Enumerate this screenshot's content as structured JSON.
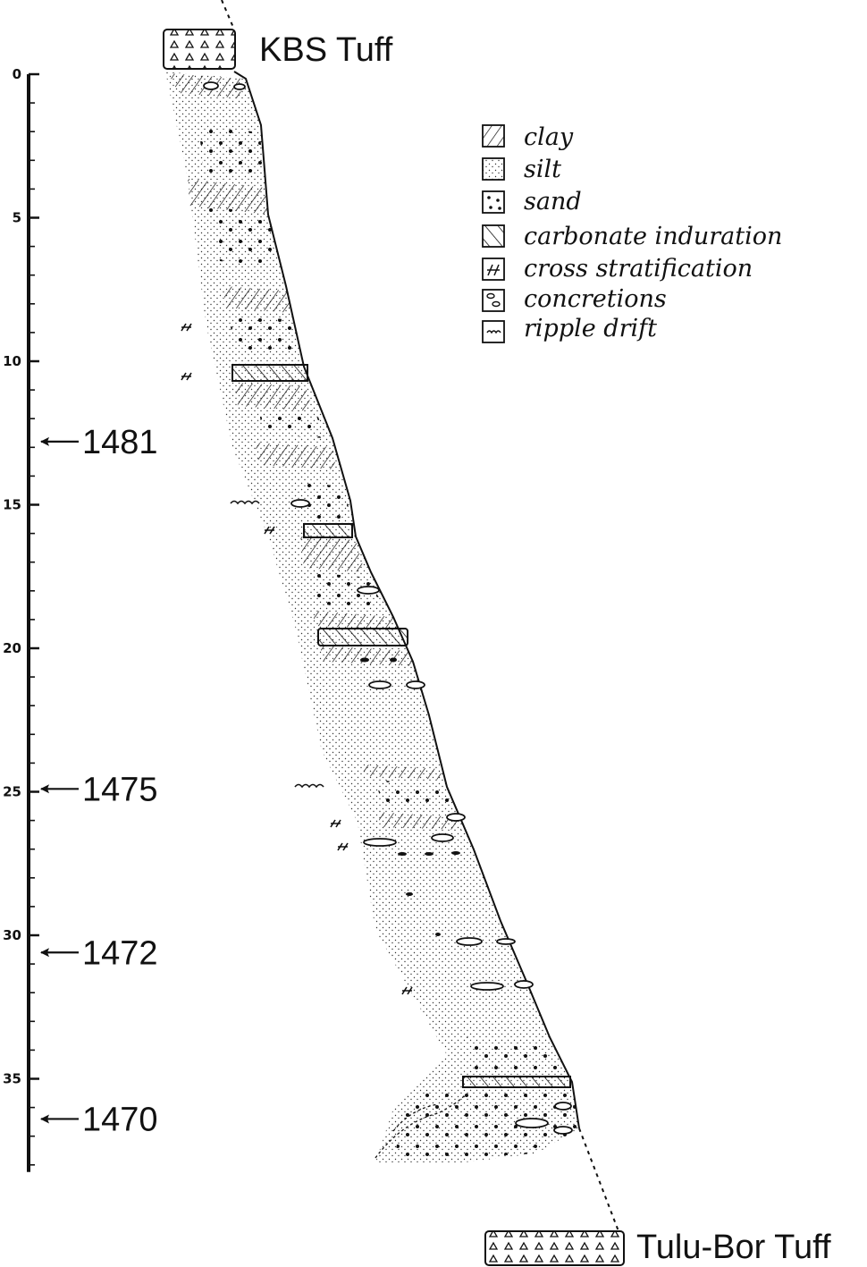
{
  "tuffs": {
    "top": "KBS Tuff",
    "bottom": "Tulu-Bor Tuff"
  },
  "scale": {
    "tick_labels": [
      "0",
      "5",
      "10",
      "15",
      "20",
      "25",
      "30",
      "35"
    ],
    "max": 38
  },
  "specimen_markers": [
    {
      "label": "1481",
      "depth": 12.8
    },
    {
      "label": "1475",
      "depth": 24.9
    },
    {
      "label": "1472",
      "depth": 30.6
    },
    {
      "label": "1470",
      "depth": 36.4
    }
  ],
  "legend": [
    {
      "key": "clay",
      "label": "clay",
      "icon": "clay-hatch-icon"
    },
    {
      "key": "silt",
      "label": "silt",
      "icon": "silt-stipple-icon"
    },
    {
      "key": "sand",
      "label": "sand",
      "icon": "sand-dots-icon"
    },
    {
      "key": "carbonate",
      "label": "carbonate induration",
      "icon": "carbonate-hatch-icon"
    },
    {
      "key": "cross",
      "label": "cross stratification",
      "icon": "cross-stratification-icon"
    },
    {
      "key": "concretions",
      "label": "concretions",
      "icon": "concretion-icon"
    },
    {
      "key": "ripple",
      "label": "ripple drift",
      "icon": "ripple-drift-icon"
    }
  ]
}
